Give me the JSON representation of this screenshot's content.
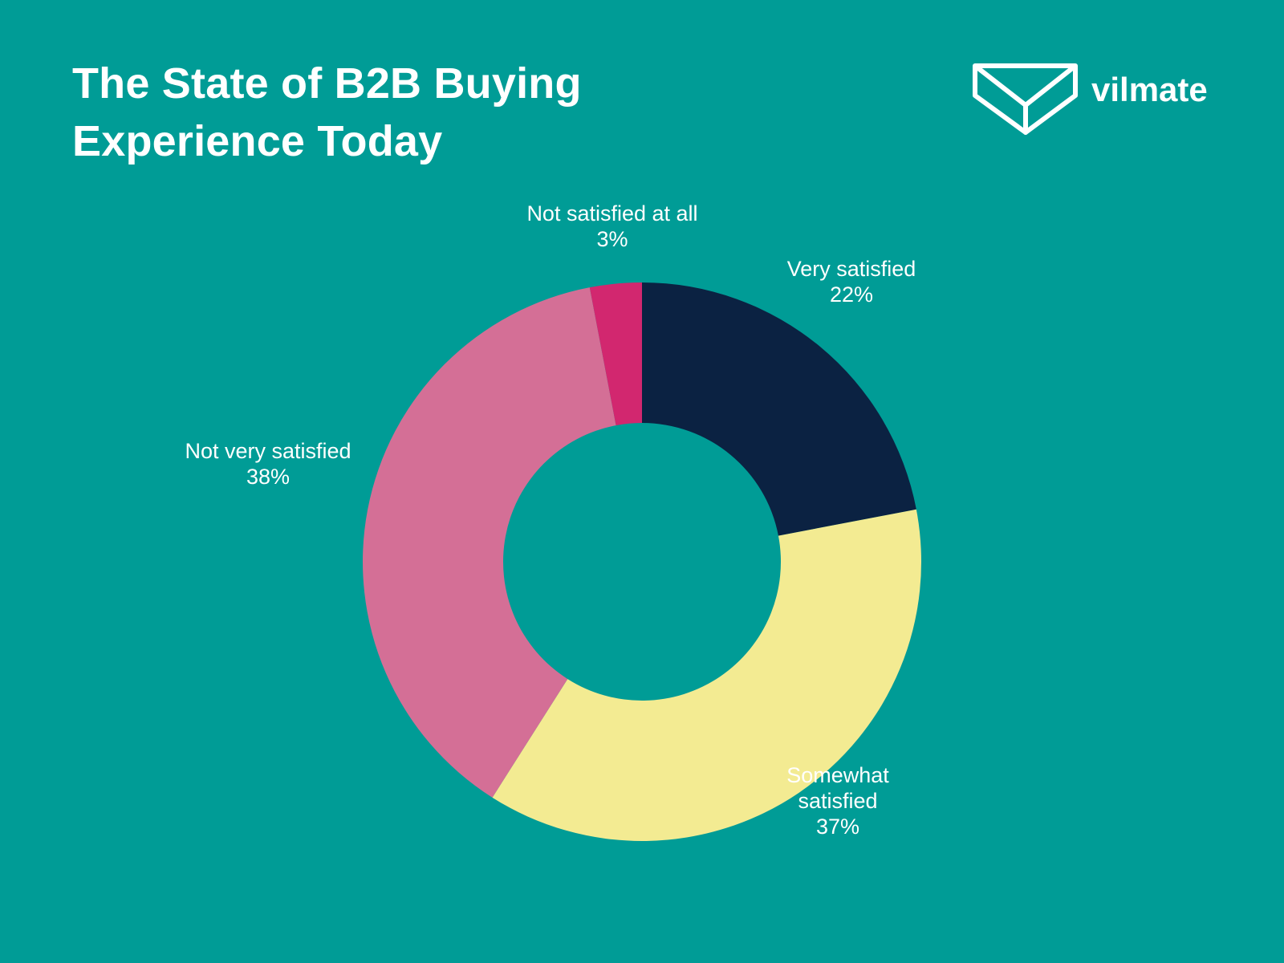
{
  "header": {
    "title_line1": "The State of B2B Buying",
    "title_line2": "Experience Today"
  },
  "brand": {
    "logo_text": "vilmate",
    "logo_icon": "box-icon"
  },
  "colors": {
    "background": "#009c96",
    "very_satisfied": "#0b2242",
    "somewhat_satisfied": "#f3eb92",
    "not_very_satisfied": "#d46f96",
    "not_satisfied_at_all": "#d2276f",
    "label": "#ffffff"
  },
  "chart_data": {
    "type": "pie",
    "donut": true,
    "unit": "%",
    "slices": [
      {
        "label_lines": [
          "Very satisfied"
        ],
        "value": 22,
        "value_label": "22%",
        "color": "#0b2242"
      },
      {
        "label_lines": [
          "Somewhat",
          "satisfied"
        ],
        "value": 37,
        "value_label": "37%",
        "color": "#f3eb92"
      },
      {
        "label_lines": [
          "Not very satisfied"
        ],
        "value": 38,
        "value_label": "38%",
        "color": "#d46f96"
      },
      {
        "label_lines": [
          "Not satisfied at all"
        ],
        "value": 3,
        "value_label": "3%",
        "color": "#d2276f"
      }
    ]
  }
}
